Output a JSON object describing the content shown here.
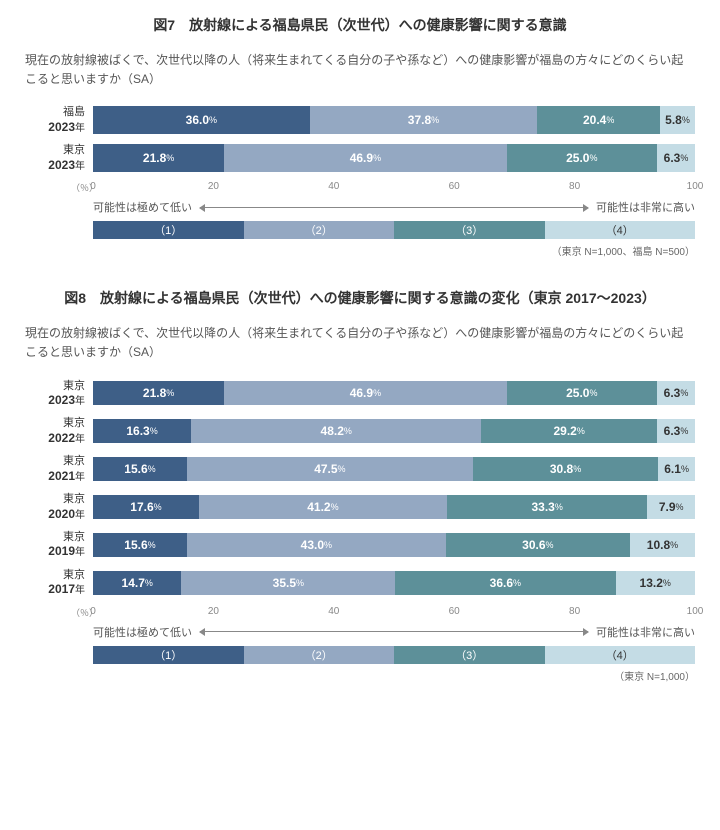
{
  "colors": {
    "seg1": "#3e5f87",
    "seg2": "#94a8c2",
    "seg3": "#5d9099",
    "seg4": "#c4dce5",
    "text_light": "#ffffff",
    "text_dark": "#333333"
  },
  "axis": {
    "unit": "（％）",
    "ticks": [
      0,
      20,
      40,
      60,
      80,
      100
    ]
  },
  "legend": {
    "low_label": "可能性は極めて低い",
    "high_label": "可能性は非常に高い",
    "labels": [
      "（1）",
      "（2）",
      "（3）",
      "（4）"
    ]
  },
  "fig7": {
    "title": "図7　放射線による福島県民（次世代）への健康影響に関する意識",
    "question": "現在の放射線被ばくで、次世代以降の人（将来生まれてくる自分の子や孫など）への健康影響が福島の方々にどのくらい起こると思いますか（SA）",
    "note": "（東京 N=1,000、福島 N=500）",
    "rows": [
      {
        "prefix": "福島",
        "year": "2023",
        "suffix": "年",
        "values": [
          36.0,
          37.8,
          20.4,
          5.8
        ]
      },
      {
        "prefix": "東京",
        "year": "2023",
        "suffix": "年",
        "values": [
          21.8,
          46.9,
          25.0,
          6.3
        ]
      }
    ]
  },
  "fig8": {
    "title": "図8　放射線による福島県民（次世代）への健康影響に関する意識の変化（東京 2017～2023）",
    "question": "現在の放射線被ばくで、次世代以降の人（将来生まれてくる自分の子や孫など）への健康影響が福島の方々にどのくらい起こると思いますか（SA）",
    "note": "（東京 N=1,000）",
    "rows": [
      {
        "prefix": "東京",
        "year": "2023",
        "suffix": "年",
        "values": [
          21.8,
          46.9,
          25.0,
          6.3
        ]
      },
      {
        "prefix": "東京",
        "year": "2022",
        "suffix": "年",
        "values": [
          16.3,
          48.2,
          29.2,
          6.3
        ]
      },
      {
        "prefix": "東京",
        "year": "2021",
        "suffix": "年",
        "values": [
          15.6,
          47.5,
          30.8,
          6.1
        ]
      },
      {
        "prefix": "東京",
        "year": "2020",
        "suffix": "年",
        "values": [
          17.6,
          41.2,
          33.3,
          7.9
        ]
      },
      {
        "prefix": "東京",
        "year": "2019",
        "suffix": "年",
        "values": [
          15.6,
          43.0,
          30.6,
          10.8
        ]
      },
      {
        "prefix": "東京",
        "year": "2017",
        "suffix": "年",
        "values": [
          14.7,
          35.5,
          36.6,
          13.2
        ]
      }
    ]
  }
}
